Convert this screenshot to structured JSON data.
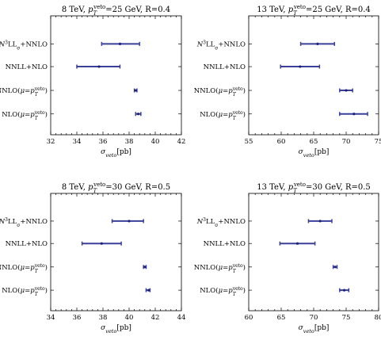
{
  "chart_data": [
    {
      "type": "errorbar",
      "title": "8 TeV, p_T^veto=25 GeV, R=0.4",
      "xlabel": "σ_veto[pb]",
      "xlim": [
        32,
        42
      ],
      "xticks": [
        32,
        34,
        36,
        38,
        40,
        42
      ],
      "categories": [
        "N³LLσ+NNLO",
        "NNLL+NLO",
        "NNLO(μ=p_T^veto)",
        "NLO(μ=p_T^veto)"
      ],
      "series": [
        {
          "values": [
            {
              "center": 37.3,
              "low": 35.9,
              "high": 38.8
            },
            {
              "center": 35.7,
              "low": 34.0,
              "high": 37.3
            },
            {
              "center": 38.5,
              "low": 38.4,
              "high": 38.6
            },
            {
              "center": 38.7,
              "low": 38.5,
              "high": 38.9
            }
          ]
        }
      ]
    },
    {
      "type": "errorbar",
      "title": "13 TeV, p_T^veto=25 GeV, R=0.4",
      "xlabel": "σ_veto[pb]",
      "xlim": [
        55,
        75
      ],
      "xticks": [
        55,
        60,
        65,
        70,
        75
      ],
      "categories": [
        "N³LLσ+NNLO",
        "NNLL+NLO",
        "NNLO(μ=p_T^veto)",
        "NLO(μ=p_T^veto)"
      ],
      "series": [
        {
          "values": [
            {
              "center": 65.6,
              "low": 63.0,
              "high": 68.2
            },
            {
              "center": 62.9,
              "low": 59.9,
              "high": 65.9
            },
            {
              "center": 70.0,
              "low": 69.0,
              "high": 71.0
            },
            {
              "center": 71.2,
              "low": 69.0,
              "high": 73.3
            }
          ]
        }
      ]
    },
    {
      "type": "errorbar",
      "title": "8 TeV, p_T^veto=30 GeV, R=0.5",
      "xlabel": "σ_veto[pb]",
      "xlim": [
        34,
        44
      ],
      "xticks": [
        34,
        36,
        38,
        40,
        42,
        44
      ],
      "categories": [
        "N³LLσ+NNLO",
        "NNLL+NLO",
        "NNLO(μ=p_T^veto)",
        "NLO(μ=p_T^veto)"
      ],
      "series": [
        {
          "values": [
            {
              "center": 40.0,
              "low": 38.7,
              "high": 41.1
            },
            {
              "center": 37.9,
              "low": 36.4,
              "high": 39.4
            },
            {
              "center": 41.2,
              "low": 41.1,
              "high": 41.3
            },
            {
              "center": 41.5,
              "low": 41.3,
              "high": 41.6
            }
          ]
        }
      ]
    },
    {
      "type": "errorbar",
      "title": "13 TeV, p_T^veto=30 GeV, R=0.5",
      "xlabel": "σ_veto[pb]",
      "xlim": [
        60,
        80
      ],
      "xticks": [
        60,
        65,
        70,
        75,
        80
      ],
      "categories": [
        "N³LLσ+NNLO",
        "NNLL+NLO",
        "NNLO(μ=p_T^veto)",
        "NLO(μ=p_T^veto)"
      ],
      "series": [
        {
          "values": [
            {
              "center": 71.0,
              "low": 69.2,
              "high": 72.8
            },
            {
              "center": 67.5,
              "low": 64.8,
              "high": 70.2
            },
            {
              "center": 73.3,
              "low": 73.0,
              "high": 73.6
            },
            {
              "center": 74.7,
              "low": 74.0,
              "high": 75.4
            }
          ]
        }
      ]
    }
  ],
  "colors": {
    "bar": "#3a3f9a",
    "point": "#1c217a"
  }
}
